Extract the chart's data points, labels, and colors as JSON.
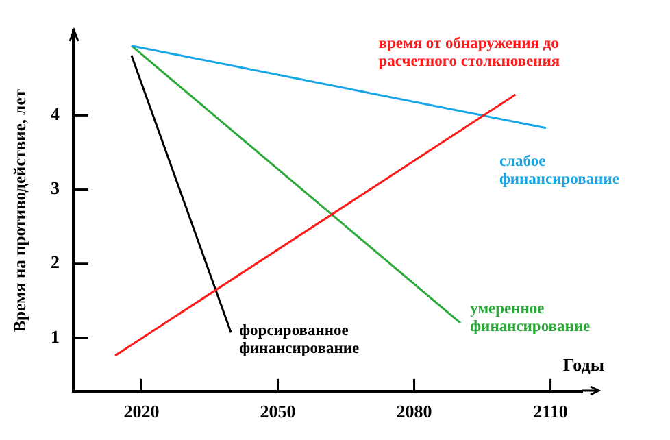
{
  "chart_data": {
    "type": "line",
    "xlabel": "Годы",
    "ylabel": "Время на противодействие, лет",
    "xlim": [
      2005,
      2117
    ],
    "ylim": [
      0.28,
      5.15
    ],
    "xticks": [
      2020,
      2050,
      2080,
      2110
    ],
    "yticks": [
      1,
      2,
      3,
      4
    ],
    "marker": "none",
    "series": [
      {
        "name": "время от обнаружения до расчетного столкновения",
        "color": "#ff1a1a",
        "x": [
          2014.2,
          2102.3
        ],
        "values": [
          0.76,
          4.28
        ]
      },
      {
        "name": "слабое финансирование",
        "color": "#19a6e6",
        "x": [
          2017.8,
          2109
        ],
        "values": [
          4.94,
          3.83
        ]
      },
      {
        "name": "умеренное финансирование",
        "color": "#2aa838",
        "x": [
          2017.8,
          2090.2
        ],
        "values": [
          4.94,
          1.2
        ]
      },
      {
        "name": "форсированное финансирование",
        "color": "#000000",
        "x": [
          2017.8,
          2039.7
        ],
        "values": [
          4.81,
          1.07
        ]
      }
    ]
  }
}
